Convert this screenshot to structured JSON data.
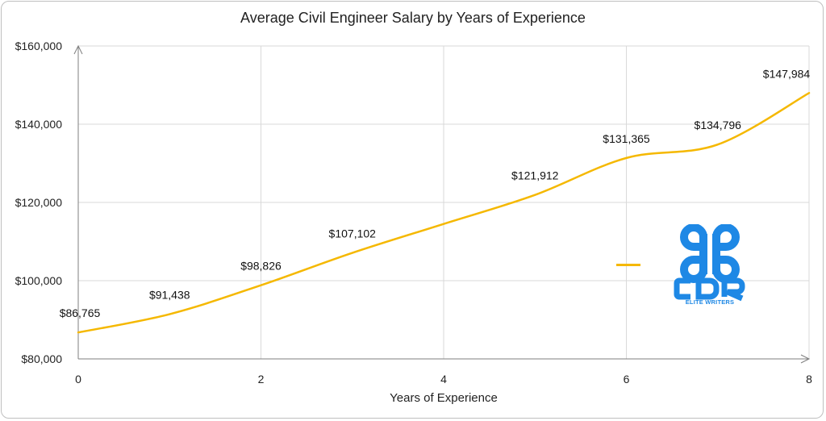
{
  "chart_data": {
    "type": "line",
    "title": "Average Civil Engineer Salary by Years of Experience",
    "xlabel": "Years of Experience",
    "ylabel": "",
    "x": [
      0,
      1,
      2,
      3,
      4,
      5,
      6,
      7,
      8
    ],
    "series": [
      {
        "values": [
          86765,
          91438,
          98826,
          107102,
          114507,
          121912,
          131365,
          134796,
          147984
        ],
        "data_labels": [
          "$86,765",
          "$91,438",
          "$98,826",
          "$107,102",
          "",
          "$121,912",
          "$131,365",
          "$134,796",
          "$147,984"
        ],
        "color": "#f5b800",
        "smooth": true
      }
    ],
    "xlim": [
      0,
      8
    ],
    "ylim": [
      80000,
      160000
    ],
    "x_ticks": [
      "0",
      "2",
      "4",
      "6",
      "8"
    ],
    "y_ticks": [
      "$80,000",
      "$100,000",
      "$120,000",
      "$140,000",
      "$160,000"
    ],
    "grid": true,
    "legend": "right"
  },
  "logo": {
    "text": "CDR",
    "caption": "ELITE WRITERS",
    "color": "#1e88e5"
  }
}
